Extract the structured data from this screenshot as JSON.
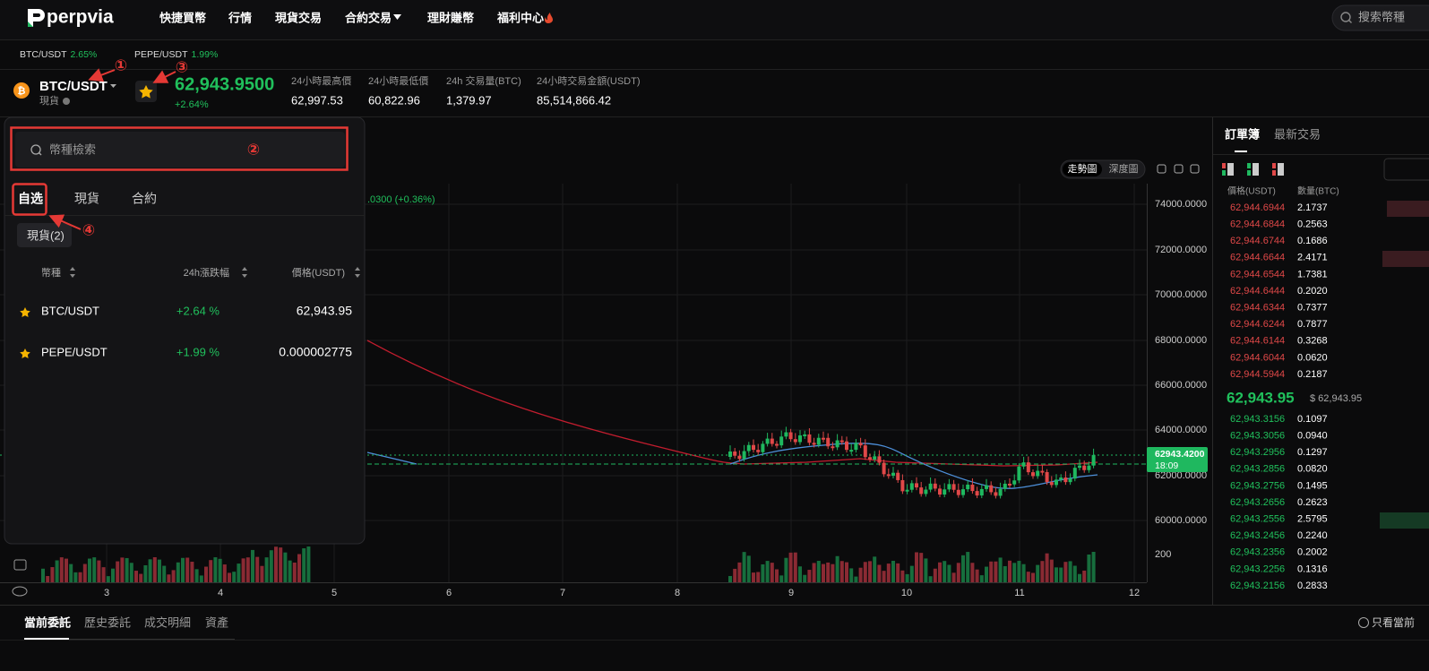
{
  "nav": {
    "logo": "perpvia",
    "items": [
      "快捷買幣",
      "行情",
      "現貨交易",
      "合約交易",
      "理財賺幣",
      "福利中心"
    ],
    "search_placeholder": "搜索幣種"
  },
  "ticker": [
    {
      "pair": "BTC/USDT",
      "change": "2.65%"
    },
    {
      "pair": "PEPE/USDT",
      "change": "1.99%"
    }
  ],
  "header": {
    "pair": "BTC/USDT",
    "market": "現貨",
    "price": "62,943.9500",
    "change": "+2.64%",
    "stats": [
      {
        "label": "24小時最高價",
        "value": "62,997.53"
      },
      {
        "label": "24小時最低價",
        "value": "60,822.96"
      },
      {
        "label": "24h 交易量(BTC)",
        "value": "1,379.97"
      },
      {
        "label": "24小時交易金額(USDT)",
        "value": "85,514,866.42"
      }
    ]
  },
  "annotations": [
    "①",
    "②",
    "③",
    "④"
  ],
  "selector": {
    "search_placeholder": "幣種檢索",
    "tabs": [
      "自选",
      "現貨",
      "合約"
    ],
    "filter": "現貨(2)",
    "columns": [
      "幣種",
      "24h漲跌幅",
      "價格(USDT)"
    ],
    "rows": [
      {
        "pair": "BTC/USDT",
        "change": "+2.64 %",
        "price": "62,943.95"
      },
      {
        "pair": "PEPE/USDT",
        "change": "+1.99 %",
        "price": "0.000002775"
      }
    ]
  },
  "chart": {
    "views": [
      "走勢圖",
      "深度圖"
    ],
    "ma_info": ".0300 (+0.36%)",
    "price_axis": [
      "74000.0000",
      "72000.0000",
      "70000.0000",
      "68000.0000",
      "66000.0000",
      "64000.0000",
      "62000.0000",
      "60000.0000"
    ],
    "volume_axis": "200",
    "date_axis": [
      "3",
      "4",
      "5",
      "6",
      "7",
      "8",
      "9",
      "10",
      "11",
      "12"
    ],
    "last_price": "62943.4200",
    "countdown": "18:09"
  },
  "order_book": {
    "tabs": [
      "訂單簿",
      "最新交易"
    ],
    "columns": [
      "價格(USDT)",
      "數量(BTC)"
    ],
    "asks": [
      [
        "62,944.6944",
        "2.1737"
      ],
      [
        "62,944.6844",
        "0.2563"
      ],
      [
        "62,944.6744",
        "0.1686"
      ],
      [
        "62,944.6644",
        "2.4171"
      ],
      [
        "62,944.6544",
        "1.7381"
      ],
      [
        "62,944.6444",
        "0.2020"
      ],
      [
        "62,944.6344",
        "0.7377"
      ],
      [
        "62,944.6244",
        "0.7877"
      ],
      [
        "62,944.6144",
        "0.3268"
      ],
      [
        "62,944.6044",
        "0.0620"
      ],
      [
        "62,944.5944",
        "0.2187"
      ]
    ],
    "last_price": "62,943.95",
    "last_price_usd": "$ 62,943.95",
    "bids": [
      [
        "62,943.3156",
        "0.1097"
      ],
      [
        "62,943.3056",
        "0.0940"
      ],
      [
        "62,943.2956",
        "0.1297"
      ],
      [
        "62,943.2856",
        "0.0820"
      ],
      [
        "62,943.2756",
        "0.1495"
      ],
      [
        "62,943.2656",
        "0.2623"
      ],
      [
        "62,943.2556",
        "2.5795"
      ],
      [
        "62,943.2456",
        "0.2240"
      ],
      [
        "62,943.2356",
        "0.2002"
      ],
      [
        "62,943.2256",
        "0.1316"
      ],
      [
        "62,943.2156",
        "0.2833"
      ]
    ]
  },
  "orders": {
    "tabs": [
      "當前委託",
      "歷史委託",
      "成交明細",
      "資產"
    ],
    "filter": "只看當前"
  }
}
